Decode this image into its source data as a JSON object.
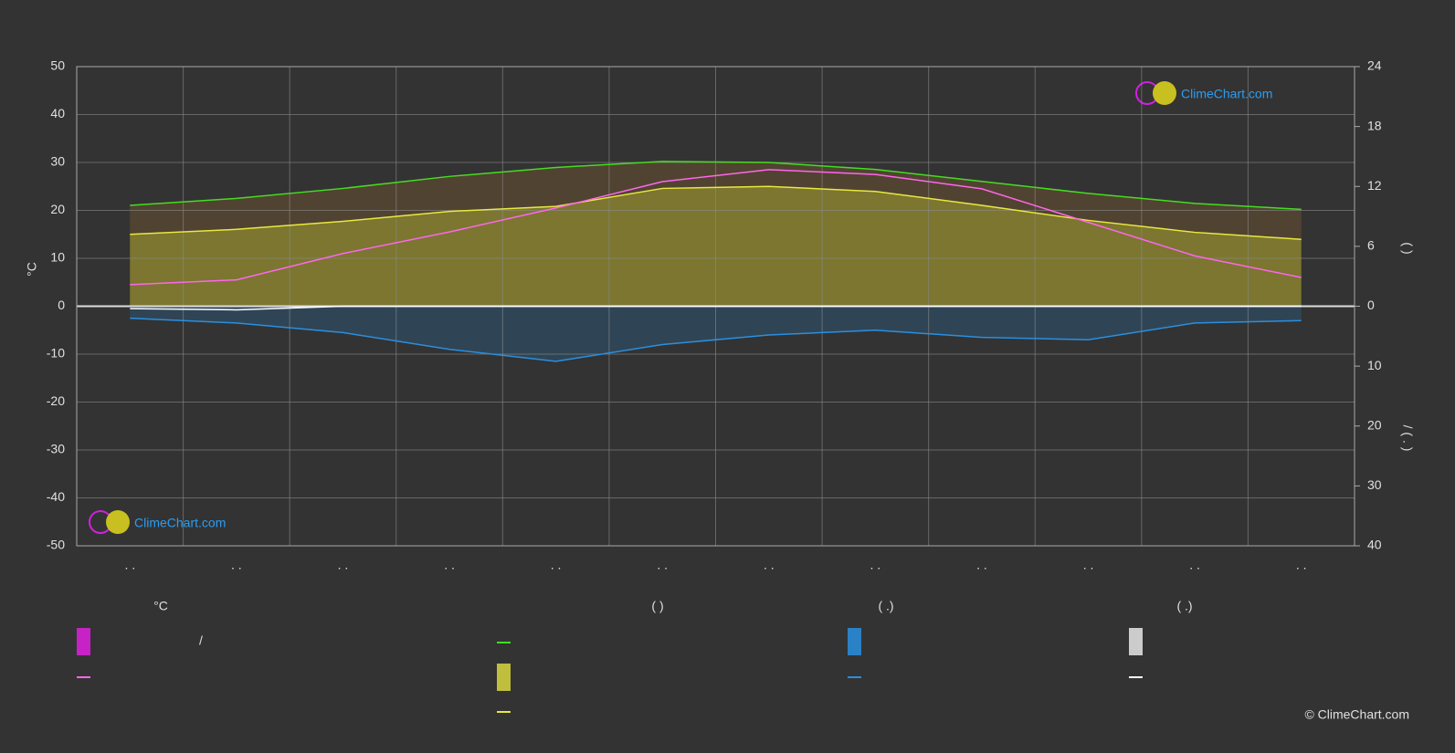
{
  "chart_data": {
    "type": "line",
    "y_label": "°C",
    "categories": [
      ". .",
      ". .",
      ". .",
      ". .",
      ". .",
      ". .",
      ". .",
      ". .",
      ". .",
      ". .",
      ". .",
      ". ."
    ],
    "ylim": [
      -50,
      50
    ],
    "yticks": [
      50,
      40,
      30,
      20,
      10,
      0,
      -10,
      -20,
      -30,
      -40,
      -50
    ],
    "hours_axis": {
      "label": "(        )",
      "lim": [
        0,
        24
      ],
      "ticks": [
        0,
        6,
        12,
        18,
        24
      ]
    },
    "precip_axis": {
      "label": "/     ( . )",
      "lim": [
        0,
        40
      ],
      "ticks": [
        10,
        20,
        30,
        40
      ]
    },
    "grid": true,
    "series": [
      {
        "axis": "hours",
        "color": "#44dd22",
        "values": [
          10.1,
          10.8,
          11.8,
          13.0,
          13.9,
          14.5,
          14.4,
          13.7,
          12.5,
          11.3,
          10.3,
          9.7
        ]
      },
      {
        "axis": "hours",
        "color": "#e8e840",
        "values": [
          7.2,
          7.7,
          8.5,
          9.5,
          10.0,
          11.8,
          12.0,
          11.5,
          10.1,
          8.6,
          7.4,
          6.7
        ]
      },
      {
        "axis": "y",
        "color": "#ff66ee",
        "values": [
          4.5,
          5.5,
          11.0,
          15.5,
          20.5,
          26.0,
          28.5,
          27.5,
          24.5,
          17.5,
          10.5,
          6.0
        ]
      },
      {
        "axis": "precip",
        "color": "#2a8fe0",
        "values": [
          2.0,
          2.8,
          4.4,
          7.2,
          9.2,
          6.4,
          4.8,
          4.0,
          5.2,
          5.6,
          2.8,
          2.4
        ]
      },
      {
        "axis": "precip",
        "color": "#ffffff",
        "values": [
          0.4,
          0.6,
          0,
          0,
          0,
          0,
          0,
          0,
          0,
          0,
          0,
          0
        ]
      }
    ],
    "legend_headers": [
      "°C",
      "(          )",
      "(   .)",
      "(   .)"
    ],
    "legend_separator": "/",
    "watermark": "ClimeChart.com",
    "copyright": "© ClimeChart.com"
  }
}
